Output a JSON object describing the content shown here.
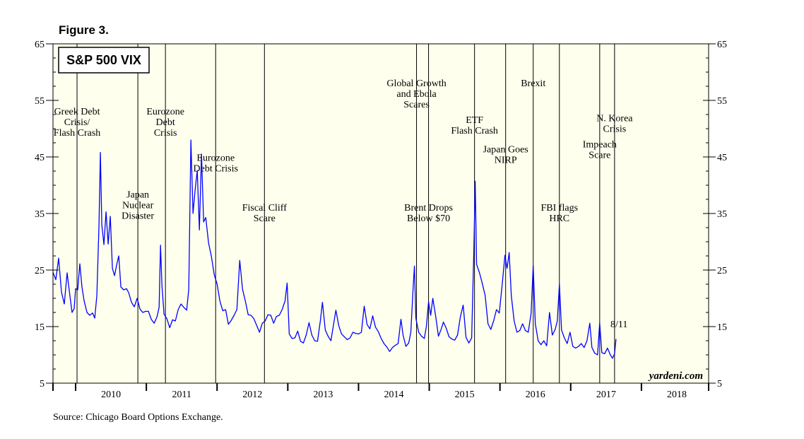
{
  "figure_label": "Figure 3.",
  "source": "Source: Chicago Board Options Exchange.",
  "chart_data": {
    "type": "line",
    "title": "S&P 500 VIX",
    "watermark": "yardeni.com",
    "end_label": "8/11",
    "xlabel": "",
    "ylabel": "",
    "ylim": [
      5,
      65
    ],
    "xlim": [
      2009.68,
      2018.95
    ],
    "y_ticks": [
      5,
      15,
      25,
      35,
      45,
      55,
      65
    ],
    "x_tick_labels": [
      "2010",
      "2011",
      "2012",
      "2013",
      "2014",
      "2015",
      "2016",
      "2017",
      "2018"
    ],
    "colors": {
      "line": "#0000ff",
      "plot_bg": "#ffffee",
      "frame": "#000000"
    },
    "events": [
      {
        "x": 2010.02,
        "label": [
          "Greek Debt",
          "Crisis/",
          "Flash Crash"
        ],
        "label_y": 52.5
      },
      {
        "x": 2010.88,
        "label": [
          "Japan",
          "Nuclear",
          "Disaster"
        ],
        "label_y": 37.8
      },
      {
        "x": 2011.27,
        "label": [
          "Eurozone",
          "Debt",
          "Crisis"
        ],
        "label_y": 52.5
      },
      {
        "x": 2011.98,
        "label": [
          "Eurozone",
          "Debt Crisis"
        ],
        "label_y": 44.3
      },
      {
        "x": 2012.67,
        "label": [
          "Fiscal Cliff",
          "Scare"
        ],
        "label_y": 35.5
      },
      {
        "x": 2014.82,
        "label": [
          "Global Growth",
          "and Ebola",
          "Scares"
        ],
        "label_y": 57.5
      },
      {
        "x": 2014.99,
        "label": [
          "Brent Drops",
          "Below $70"
        ],
        "label_y": 35.5
      },
      {
        "x": 2015.64,
        "label": [
          "ETF",
          "Flash Crash"
        ],
        "label_y": 51.0
      },
      {
        "x": 2016.08,
        "label": [
          "Japan Goes",
          "NIRP"
        ],
        "label_y": 45.8
      },
      {
        "x": 2016.47,
        "label": [
          "Brexit"
        ],
        "label_y": 57.5
      },
      {
        "x": 2016.84,
        "label": [
          "FBI flags",
          "HRC"
        ],
        "label_y": 35.5
      },
      {
        "x": 2017.41,
        "label": [
          "Impeach",
          "Scare"
        ],
        "label_y": 46.7
      },
      {
        "x": 2017.62,
        "label": [
          "N. Korea",
          "Crisis"
        ],
        "label_y": 51.3
      }
    ],
    "series": [
      {
        "name": "VIX",
        "points": [
          [
            2009.68,
            24.6
          ],
          [
            2009.72,
            23.3
          ],
          [
            2009.76,
            27.1
          ],
          [
            2009.8,
            21.1
          ],
          [
            2009.84,
            19.0
          ],
          [
            2009.88,
            24.5
          ],
          [
            2009.92,
            20.4
          ],
          [
            2009.95,
            17.5
          ],
          [
            2009.98,
            18.2
          ],
          [
            2010.0,
            21.7
          ],
          [
            2010.03,
            21.5
          ],
          [
            2010.06,
            26.1
          ],
          [
            2010.09,
            22.0
          ],
          [
            2010.12,
            19.6
          ],
          [
            2010.16,
            17.5
          ],
          [
            2010.2,
            17.0
          ],
          [
            2010.24,
            17.4
          ],
          [
            2010.27,
            16.5
          ],
          [
            2010.3,
            20.5
          ],
          [
            2010.33,
            32.9
          ],
          [
            2010.35,
            45.8
          ],
          [
            2010.37,
            33.0
          ],
          [
            2010.4,
            29.5
          ],
          [
            2010.43,
            35.3
          ],
          [
            2010.46,
            29.6
          ],
          [
            2010.49,
            34.5
          ],
          [
            2010.52,
            25.3
          ],
          [
            2010.55,
            24.0
          ],
          [
            2010.58,
            25.9
          ],
          [
            2010.61,
            27.5
          ],
          [
            2010.64,
            22.0
          ],
          [
            2010.68,
            21.5
          ],
          [
            2010.72,
            21.7
          ],
          [
            2010.75,
            21.0
          ],
          [
            2010.79,
            19.3
          ],
          [
            2010.83,
            18.5
          ],
          [
            2010.87,
            20.0
          ],
          [
            2010.91,
            18.1
          ],
          [
            2010.95,
            17.5
          ],
          [
            2010.99,
            17.7
          ],
          [
            2011.03,
            17.7
          ],
          [
            2011.07,
            16.3
          ],
          [
            2011.11,
            15.6
          ],
          [
            2011.15,
            16.7
          ],
          [
            2011.18,
            18.4
          ],
          [
            2011.2,
            29.4
          ],
          [
            2011.22,
            22.3
          ],
          [
            2011.25,
            17.2
          ],
          [
            2011.29,
            16.4
          ],
          [
            2011.33,
            14.8
          ],
          [
            2011.37,
            16.2
          ],
          [
            2011.41,
            16.0
          ],
          [
            2011.45,
            18.0
          ],
          [
            2011.49,
            19.0
          ],
          [
            2011.53,
            18.4
          ],
          [
            2011.57,
            17.9
          ],
          [
            2011.6,
            21.6
          ],
          [
            2011.63,
            48.0
          ],
          [
            2011.66,
            35.0
          ],
          [
            2011.69,
            39.2
          ],
          [
            2011.72,
            42.6
          ],
          [
            2011.75,
            32.1
          ],
          [
            2011.78,
            45.5
          ],
          [
            2011.81,
            33.5
          ],
          [
            2011.84,
            34.3
          ],
          [
            2011.88,
            29.8
          ],
          [
            2011.92,
            27.4
          ],
          [
            2011.96,
            24.2
          ],
          [
            2012.0,
            22.5
          ],
          [
            2012.04,
            19.5
          ],
          [
            2012.08,
            17.8
          ],
          [
            2012.12,
            18.0
          ],
          [
            2012.16,
            15.4
          ],
          [
            2012.2,
            16.1
          ],
          [
            2012.24,
            17.0
          ],
          [
            2012.28,
            18.0
          ],
          [
            2012.32,
            26.7
          ],
          [
            2012.36,
            21.6
          ],
          [
            2012.4,
            19.5
          ],
          [
            2012.44,
            17.1
          ],
          [
            2012.48,
            17.0
          ],
          [
            2012.52,
            16.4
          ],
          [
            2012.56,
            15.2
          ],
          [
            2012.6,
            14.0
          ],
          [
            2012.64,
            15.6
          ],
          [
            2012.68,
            16.0
          ],
          [
            2012.72,
            17.1
          ],
          [
            2012.76,
            17.0
          ],
          [
            2012.8,
            15.6
          ],
          [
            2012.84,
            16.8
          ],
          [
            2012.88,
            17.0
          ],
          [
            2012.92,
            18.0
          ],
          [
            2012.96,
            19.5
          ],
          [
            2012.99,
            22.7
          ],
          [
            2013.02,
            13.7
          ],
          [
            2013.06,
            12.9
          ],
          [
            2013.1,
            13.0
          ],
          [
            2013.14,
            14.2
          ],
          [
            2013.18,
            12.4
          ],
          [
            2013.22,
            12.1
          ],
          [
            2013.26,
            13.5
          ],
          [
            2013.3,
            15.7
          ],
          [
            2013.34,
            13.5
          ],
          [
            2013.38,
            12.5
          ],
          [
            2013.42,
            12.4
          ],
          [
            2013.46,
            16.0
          ],
          [
            2013.49,
            19.3
          ],
          [
            2013.53,
            14.4
          ],
          [
            2013.57,
            13.3
          ],
          [
            2013.61,
            12.5
          ],
          [
            2013.65,
            15.6
          ],
          [
            2013.68,
            17.9
          ],
          [
            2013.72,
            15.2
          ],
          [
            2013.76,
            13.7
          ],
          [
            2013.8,
            13.2
          ],
          [
            2013.84,
            12.7
          ],
          [
            2013.88,
            13.0
          ],
          [
            2013.92,
            14.0
          ],
          [
            2013.96,
            13.8
          ],
          [
            2014.0,
            13.7
          ],
          [
            2014.04,
            14.0
          ],
          [
            2014.08,
            18.6
          ],
          [
            2014.12,
            15.4
          ],
          [
            2014.16,
            14.6
          ],
          [
            2014.2,
            16.9
          ],
          [
            2014.24,
            14.9
          ],
          [
            2014.28,
            14.1
          ],
          [
            2014.32,
            12.9
          ],
          [
            2014.36,
            12.0
          ],
          [
            2014.4,
            11.4
          ],
          [
            2014.44,
            10.6
          ],
          [
            2014.48,
            11.3
          ],
          [
            2014.52,
            11.7
          ],
          [
            2014.56,
            12.0
          ],
          [
            2014.6,
            16.3
          ],
          [
            2014.63,
            13.5
          ],
          [
            2014.67,
            11.5
          ],
          [
            2014.71,
            12.1
          ],
          [
            2014.74,
            14.0
          ],
          [
            2014.77,
            21.3
          ],
          [
            2014.79,
            25.7
          ],
          [
            2014.81,
            16.5
          ],
          [
            2014.85,
            14.0
          ],
          [
            2014.89,
            13.3
          ],
          [
            2014.93,
            12.9
          ],
          [
            2014.96,
            15.1
          ],
          [
            2014.99,
            19.4
          ],
          [
            2015.02,
            17.0
          ],
          [
            2015.05,
            20.0
          ],
          [
            2015.09,
            16.9
          ],
          [
            2015.13,
            13.3
          ],
          [
            2015.17,
            14.6
          ],
          [
            2015.2,
            15.8
          ],
          [
            2015.24,
            14.7
          ],
          [
            2015.28,
            13.2
          ],
          [
            2015.32,
            12.8
          ],
          [
            2015.36,
            12.6
          ],
          [
            2015.4,
            13.5
          ],
          [
            2015.44,
            16.7
          ],
          [
            2015.48,
            18.8
          ],
          [
            2015.52,
            13.1
          ],
          [
            2015.56,
            12.1
          ],
          [
            2015.6,
            13.0
          ],
          [
            2015.63,
            28.0
          ],
          [
            2015.65,
            40.7
          ],
          [
            2015.67,
            26.0
          ],
          [
            2015.71,
            24.5
          ],
          [
            2015.75,
            22.6
          ],
          [
            2015.79,
            20.5
          ],
          [
            2015.83,
            15.5
          ],
          [
            2015.87,
            14.5
          ],
          [
            2015.91,
            16.0
          ],
          [
            2015.95,
            18.0
          ],
          [
            2015.99,
            17.4
          ],
          [
            2016.03,
            22.3
          ],
          [
            2016.07,
            27.6
          ],
          [
            2016.1,
            25.3
          ],
          [
            2016.13,
            28.1
          ],
          [
            2016.16,
            20.5
          ],
          [
            2016.2,
            16.0
          ],
          [
            2016.24,
            14.0
          ],
          [
            2016.28,
            14.3
          ],
          [
            2016.32,
            15.5
          ],
          [
            2016.36,
            14.3
          ],
          [
            2016.4,
            14.0
          ],
          [
            2016.44,
            17.3
          ],
          [
            2016.47,
            25.8
          ],
          [
            2016.5,
            15.5
          ],
          [
            2016.54,
            12.5
          ],
          [
            2016.58,
            11.8
          ],
          [
            2016.62,
            12.5
          ],
          [
            2016.66,
            11.6
          ],
          [
            2016.7,
            17.5
          ],
          [
            2016.74,
            13.5
          ],
          [
            2016.78,
            14.5
          ],
          [
            2016.81,
            16.0
          ],
          [
            2016.84,
            22.5
          ],
          [
            2016.87,
            14.4
          ],
          [
            2016.91,
            13.0
          ],
          [
            2016.95,
            12.0
          ],
          [
            2016.99,
            14.0
          ],
          [
            2017.03,
            11.5
          ],
          [
            2017.07,
            11.2
          ],
          [
            2017.11,
            11.5
          ],
          [
            2017.15,
            12.0
          ],
          [
            2017.19,
            11.3
          ],
          [
            2017.23,
            12.5
          ],
          [
            2017.27,
            15.6
          ],
          [
            2017.3,
            11.3
          ],
          [
            2017.34,
            10.3
          ],
          [
            2017.38,
            10.0
          ],
          [
            2017.41,
            15.6
          ],
          [
            2017.44,
            10.4
          ],
          [
            2017.48,
            10.2
          ],
          [
            2017.52,
            11.2
          ],
          [
            2017.56,
            10.0
          ],
          [
            2017.59,
            9.4
          ],
          [
            2017.62,
            10.2
          ],
          [
            2017.64,
            12.8
          ]
        ]
      }
    ]
  }
}
